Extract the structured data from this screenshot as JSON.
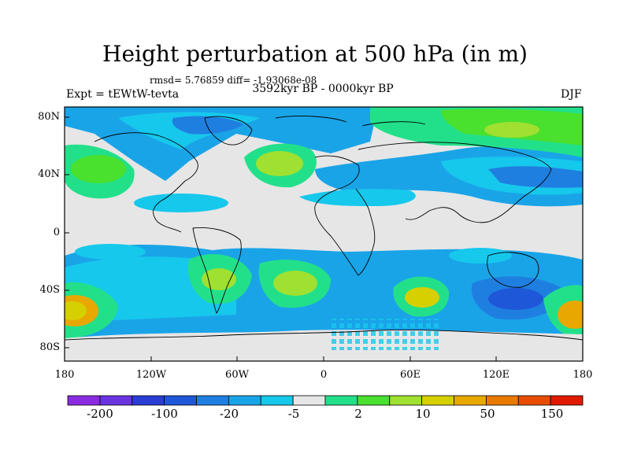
{
  "title": "Height perturbation at 500 hPa (in m)",
  "stats": "rmsd= 5.76859 diff= -1.93068e-08",
  "experiment": "Expt = tEWtW-tevta",
  "period": "3592kyr BP - 0000kyr BP",
  "season": "DJF",
  "axes": {
    "lat_labels": [
      "80N",
      "40N",
      "0",
      "40S",
      "80S"
    ],
    "lon_labels": [
      "180",
      "120W",
      "60W",
      "0",
      "60E",
      "120E",
      "180"
    ]
  },
  "colorbar": {
    "colors": [
      "#8a2be2",
      "#6a33e0",
      "#2a3dd4",
      "#1f57d9",
      "#1f7fe0",
      "#1aa4e8",
      "#16c8ec",
      "#e6e6e6",
      "#22e08a",
      "#4ae02e",
      "#a0e030",
      "#d6d000",
      "#e8a800",
      "#e87a00",
      "#e84c00",
      "#e01a00"
    ],
    "labels": [
      "-200",
      "-100",
      "-20",
      "-5",
      "2",
      "10",
      "50",
      "150"
    ]
  }
}
